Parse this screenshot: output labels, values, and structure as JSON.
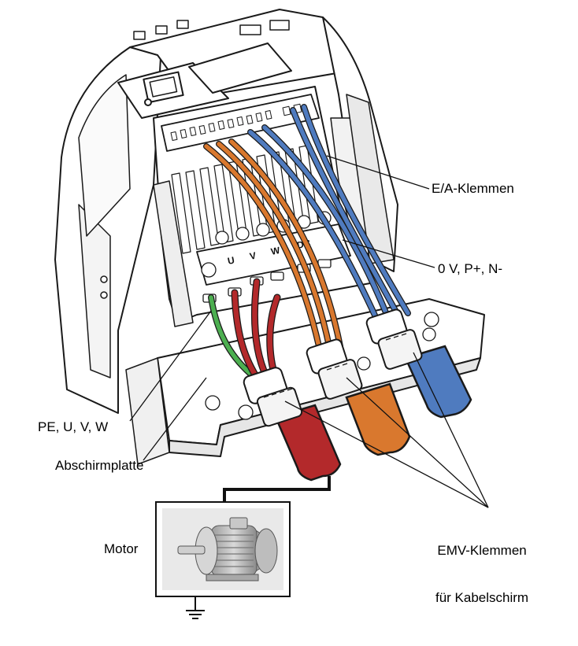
{
  "labels": {
    "io_terminals": "E/A-Klemmen",
    "dc_terminals": "0 V, P+, N-",
    "motor_terminals": "PE, U, V, W",
    "shield_plate": "Abschirmplatte",
    "motor": "Motor",
    "emc_clamps_line1": "EMV-Klemmen",
    "emc_clamps_line2": "für Kabelschirm"
  },
  "terminal_marks": {
    "u": "U",
    "v": "V",
    "w": "W",
    "dc": "DC"
  },
  "colors": {
    "outline": "#1a1a1a",
    "cable_red": "#b3292b",
    "cable_orange": "#d9782e",
    "cable_blue": "#4f7bbf",
    "wire_green": "#4caf50",
    "housing": "#ffffff",
    "shadow": "#cfcfcf"
  }
}
